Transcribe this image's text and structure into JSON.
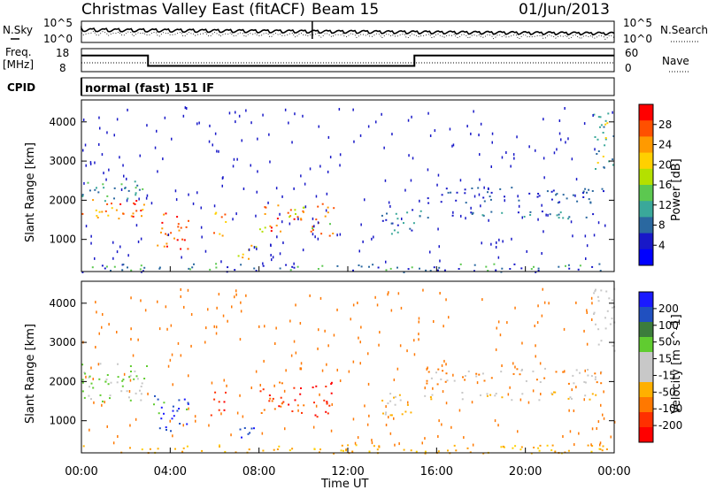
{
  "chart_data": {
    "type": "heatmap",
    "title": "Christmas Valley East (fitACF)",
    "beam_label": "Beam 15",
    "date": "01/Jun/2013",
    "cpid_label": "CPID",
    "cpid_value": "normal (fast) 151 IF",
    "xlabel": "Time UT",
    "x_ticks": [
      "00:00",
      "04:00",
      "08:00",
      "12:00",
      "16:00",
      "20:00",
      "00:00"
    ],
    "x_range_hours": [
      0,
      24
    ],
    "noise_panel": {
      "left_label": "N.Sky",
      "right_label": "N.Search",
      "left_ticks": [
        "10^5",
        "10^0"
      ],
      "right_ticks": [
        "10^5",
        "10^0"
      ]
    },
    "freq_panel": {
      "left_label_1": "Freq.",
      "left_label_2": "[MHz]",
      "right_label": "Nave",
      "left_ticks": [
        "18",
        "8"
      ],
      "right_ticks": [
        "60",
        "0"
      ],
      "freq_steps": [
        {
          "from_h": 0,
          "to_h": 3,
          "freq_mhz": 15
        },
        {
          "from_h": 3,
          "to_h": 15,
          "freq_mhz": 10.5
        },
        {
          "from_h": 15,
          "to_h": 24,
          "freq_mhz": 15
        }
      ]
    },
    "power_panel": {
      "ylabel": "Slant Range [km]",
      "y_ticks": [
        "4000",
        "3000",
        "2000",
        "1000"
      ],
      "y_range_km": [
        180,
        4560
      ],
      "colorbar_label": "Power [dB]",
      "colorbar_ticks": [
        "28",
        "24",
        "20",
        "16",
        "12",
        "8",
        "4"
      ],
      "colorbar_colors": [
        "#ff0000",
        "#ff5000",
        "#ff9a00",
        "#ffd000",
        "#b4e000",
        "#5cc850",
        "#3aa89a",
        "#2a68a0",
        "#1818c8",
        "#0000ff"
      ]
    },
    "velocity_panel": {
      "ylabel": "Slant Range [km]",
      "y_ticks": [
        "4000",
        "3000",
        "2000",
        "1000"
      ],
      "y_range_km": [
        180,
        4560
      ],
      "colorbar_label": "Velocity [m s^-1]",
      "colorbar_ticks": [
        "200",
        "100",
        "50",
        "15",
        "-15",
        "-50",
        "-100",
        "-200"
      ],
      "colorbar_colors": [
        "#1a1aff",
        "#2050c0",
        "#3c7c3c",
        "#60cc30",
        "#c8c8c8",
        "#c8c8c8",
        "#ffb000",
        "#ff7800",
        "#ff3000",
        "#ff0000"
      ]
    }
  }
}
